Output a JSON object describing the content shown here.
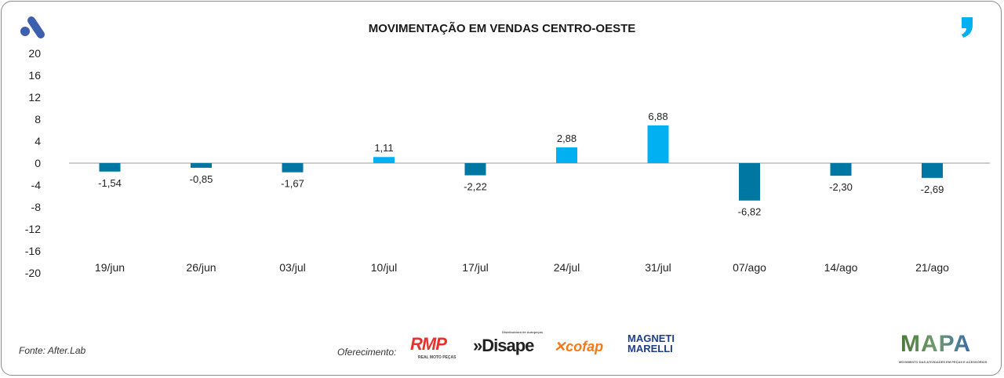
{
  "header": {
    "title": "MOVIMENTAÇÃO EM VENDAS CENTRO-OESTE"
  },
  "footer": {
    "source": "Fonte: After.Lab",
    "offered_by": "Oferecimento:",
    "sponsors": [
      "RMP",
      "Disape",
      "cofap",
      "MAGNETI MARELLI"
    ],
    "sponsor_sub": {
      "rmp": "REAL MOTO PEÇAS",
      "disape": "Distribuidora de Autopeças"
    },
    "mapa": "MAPA",
    "mapa_sub": "MOVIMENTO DAS ATIVIDADES EM PEÇAS E ACESSÓRIOS"
  },
  "colors": {
    "positive": "#00b0f0",
    "negative": "#0076a3",
    "brand": "#3c5fb0"
  },
  "chart_data": {
    "type": "bar",
    "title": "MOVIMENTAÇÃO EM VENDAS CENTRO-OESTE",
    "categories": [
      "19/jun",
      "26/jun",
      "03/jul",
      "10/jul",
      "17/jul",
      "24/jul",
      "31/jul",
      "07/ago",
      "14/ago",
      "21/ago"
    ],
    "values": [
      -1.54,
      -0.85,
      -1.67,
      1.11,
      -2.22,
      2.88,
      6.88,
      -6.82,
      -2.3,
      -2.69
    ],
    "labels": [
      "-1,54",
      "-0,85",
      "-1,67",
      "1,11",
      "-2,22",
      "2,88",
      "6,88",
      "-6,82",
      "-2,30",
      "-2,69"
    ],
    "yticks": [
      "20",
      "16",
      "12",
      "8",
      "4",
      "0",
      "-4",
      "-8",
      "-12",
      "-16",
      "-20"
    ],
    "ytick_values": [
      20,
      16,
      12,
      8,
      4,
      0,
      -4,
      -8,
      -12,
      -16,
      -20
    ],
    "ylim": [
      -20,
      20
    ],
    "xlabel": "",
    "ylabel": "",
    "grid": false,
    "legend": "none"
  }
}
